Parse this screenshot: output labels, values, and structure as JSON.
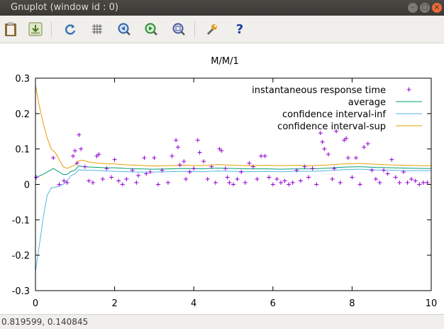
{
  "window": {
    "title": "Gnuplot (window id : 0)"
  },
  "toolbar": {
    "buttons": [
      {
        "name": "clipboard-icon",
        "glyph": "📋"
      },
      {
        "name": "print-icon",
        "glyph": "⇩"
      },
      {
        "name": "replot-icon",
        "glyph": "↻"
      },
      {
        "name": "grid-icon",
        "glyph": "#"
      },
      {
        "name": "zoom-previous-icon",
        "glyph": "◀"
      },
      {
        "name": "zoom-next-icon",
        "glyph": "▶"
      },
      {
        "name": "autoscale-icon",
        "glyph": "⊕"
      },
      {
        "name": "options-icon",
        "glyph": "🔧"
      },
      {
        "name": "help-icon",
        "glyph": "?"
      }
    ]
  },
  "status": {
    "coords": "0.819599,  0.140845"
  },
  "colors": {
    "points": "#9400d3",
    "average": "#009e73",
    "conf_inf": "#56b4e9",
    "conf_sup": "#e69f00"
  },
  "chart_data": {
    "type": "line",
    "title": "M/M/1",
    "xlabel": "",
    "ylabel": "",
    "xlim": [
      0,
      10
    ],
    "ylim": [
      -0.3,
      0.3
    ],
    "xticks": [
      "0",
      "2",
      "4",
      "6",
      "8",
      "10"
    ],
    "yticks": [
      "-0.3",
      "-0.2",
      "-0.1",
      "0",
      "0.1",
      "0.2",
      "0.3"
    ],
    "xtick_values": [
      0,
      2,
      4,
      6,
      8,
      10
    ],
    "ytick_values": [
      -0.3,
      -0.2,
      -0.1,
      0,
      0.1,
      0.2,
      0.3
    ],
    "grid": false,
    "legend_position": "top-right",
    "series": [
      {
        "name": "instantaneous response time",
        "style": "points",
        "x": [
          0.02,
          0.45,
          0.6,
          0.72,
          0.8,
          0.95,
          1.0,
          1.05,
          1.1,
          1.15,
          1.25,
          1.35,
          1.45,
          1.55,
          1.6,
          1.7,
          1.8,
          1.92,
          2.0,
          2.1,
          2.2,
          2.3,
          2.45,
          2.55,
          2.6,
          2.75,
          2.8,
          2.9,
          3.0,
          3.1,
          3.2,
          3.35,
          3.45,
          3.55,
          3.6,
          3.65,
          3.75,
          3.8,
          3.9,
          4.0,
          4.1,
          4.15,
          4.25,
          4.35,
          4.45,
          4.55,
          4.65,
          4.7,
          4.8,
          4.85,
          4.9,
          5.0,
          5.1,
          5.2,
          5.3,
          5.4,
          5.5,
          5.6,
          5.7,
          5.8,
          5.9,
          6.0,
          6.1,
          6.2,
          6.3,
          6.4,
          6.5,
          6.6,
          6.7,
          6.8,
          6.9,
          7.0,
          7.1,
          7.2,
          7.25,
          7.3,
          7.4,
          7.5,
          7.55,
          7.6,
          7.7,
          7.8,
          7.85,
          7.9,
          8.0,
          8.1,
          8.2,
          8.3,
          8.4,
          8.5,
          8.6,
          8.7,
          8.8,
          8.9,
          9.0,
          9.1,
          9.2,
          9.3,
          9.4,
          9.5,
          9.6,
          9.7,
          9.8,
          9.9
        ],
        "y": [
          0.02,
          0.075,
          0.0,
          0.01,
          0.005,
          0.08,
          0.095,
          0.06,
          0.14,
          0.1,
          0.05,
          0.01,
          0.005,
          0.08,
          0.085,
          0.015,
          0.045,
          0.02,
          0.07,
          0.01,
          0.0,
          0.015,
          0.04,
          0.005,
          0.025,
          0.075,
          0.03,
          0.035,
          0.075,
          0.0,
          0.04,
          0.005,
          0.08,
          0.125,
          0.105,
          0.055,
          0.065,
          0.015,
          0.035,
          0.045,
          0.125,
          0.09,
          0.065,
          0.015,
          0.05,
          0.005,
          0.1,
          0.095,
          0.045,
          0.02,
          0.005,
          0.0,
          0.015,
          0.035,
          0.005,
          0.06,
          0.05,
          0.015,
          0.08,
          0.08,
          0.02,
          0.0,
          0.015,
          0.005,
          0.01,
          0.0,
          0.005,
          0.04,
          0.01,
          0.05,
          0.02,
          0.045,
          0.0,
          0.145,
          0.12,
          0.1,
          0.085,
          0.015,
          0.045,
          0.15,
          0.005,
          0.125,
          0.13,
          0.075,
          0.02,
          0.075,
          0.0,
          0.105,
          0.115,
          0.04,
          0.015,
          0.005,
          0.04,
          0.03,
          0.07,
          0.02,
          0.005,
          0.035,
          0.005,
          0.015,
          0.01,
          0.0,
          0.005,
          0.005
        ]
      },
      {
        "name": "average",
        "style": "line",
        "x": [
          0.0,
          0.25,
          0.45,
          0.6,
          0.7,
          0.8,
          0.9,
          1.0,
          1.1,
          1.2,
          1.4,
          1.6,
          1.8,
          2.0,
          2.3,
          2.6,
          3.0,
          3.4,
          3.8,
          4.2,
          4.6,
          5.0,
          5.4,
          5.8,
          6.2,
          6.6,
          7.0,
          7.4,
          7.8,
          8.2,
          8.6,
          9.0,
          9.4,
          9.8,
          10.0
        ],
        "y": [
          0.018,
          0.032,
          0.045,
          0.035,
          0.028,
          0.028,
          0.037,
          0.04,
          0.053,
          0.05,
          0.049,
          0.048,
          0.047,
          0.047,
          0.045,
          0.044,
          0.043,
          0.044,
          0.045,
          0.044,
          0.046,
          0.045,
          0.044,
          0.044,
          0.043,
          0.044,
          0.044,
          0.046,
          0.049,
          0.05,
          0.048,
          0.047,
          0.046,
          0.045,
          0.045
        ]
      },
      {
        "name": "confidence interval-inf",
        "style": "line",
        "x": [
          0.0,
          0.1,
          0.2,
          0.3,
          0.4,
          0.5,
          0.6,
          0.7,
          0.8,
          0.9,
          1.0,
          1.1,
          1.2,
          1.4,
          1.6,
          1.8,
          2.0,
          2.3,
          2.6,
          3.0,
          3.4,
          3.8,
          4.2,
          4.6,
          5.0,
          5.4,
          5.8,
          6.2,
          6.6,
          7.0,
          7.4,
          7.8,
          8.2,
          8.6,
          9.0,
          9.4,
          9.8,
          10.0
        ],
        "y": [
          -0.245,
          -0.17,
          -0.09,
          -0.03,
          -0.01,
          -0.008,
          -0.005,
          0.0,
          0.01,
          0.025,
          0.03,
          0.042,
          0.04,
          0.04,
          0.039,
          0.038,
          0.037,
          0.036,
          0.035,
          0.035,
          0.036,
          0.037,
          0.036,
          0.038,
          0.037,
          0.036,
          0.037,
          0.036,
          0.037,
          0.037,
          0.039,
          0.042,
          0.043,
          0.041,
          0.04,
          0.039,
          0.039,
          0.039
        ]
      },
      {
        "name": "confidence interval-sup",
        "style": "line",
        "x": [
          0.0,
          0.1,
          0.2,
          0.3,
          0.4,
          0.5,
          0.6,
          0.7,
          0.8,
          0.9,
          1.0,
          1.1,
          1.2,
          1.4,
          1.6,
          1.8,
          2.0,
          2.3,
          2.6,
          3.0,
          3.4,
          3.8,
          4.2,
          4.6,
          5.0,
          5.4,
          5.8,
          6.2,
          6.6,
          7.0,
          7.4,
          7.8,
          8.2,
          8.6,
          9.0,
          9.4,
          9.8,
          10.0
        ],
        "y": [
          0.28,
          0.22,
          0.17,
          0.13,
          0.1,
          0.09,
          0.07,
          0.05,
          0.045,
          0.05,
          0.055,
          0.067,
          0.068,
          0.062,
          0.06,
          0.058,
          0.058,
          0.055,
          0.054,
          0.052,
          0.053,
          0.054,
          0.053,
          0.056,
          0.054,
          0.053,
          0.054,
          0.053,
          0.054,
          0.053,
          0.055,
          0.058,
          0.059,
          0.057,
          0.055,
          0.054,
          0.053,
          0.053
        ]
      }
    ]
  }
}
